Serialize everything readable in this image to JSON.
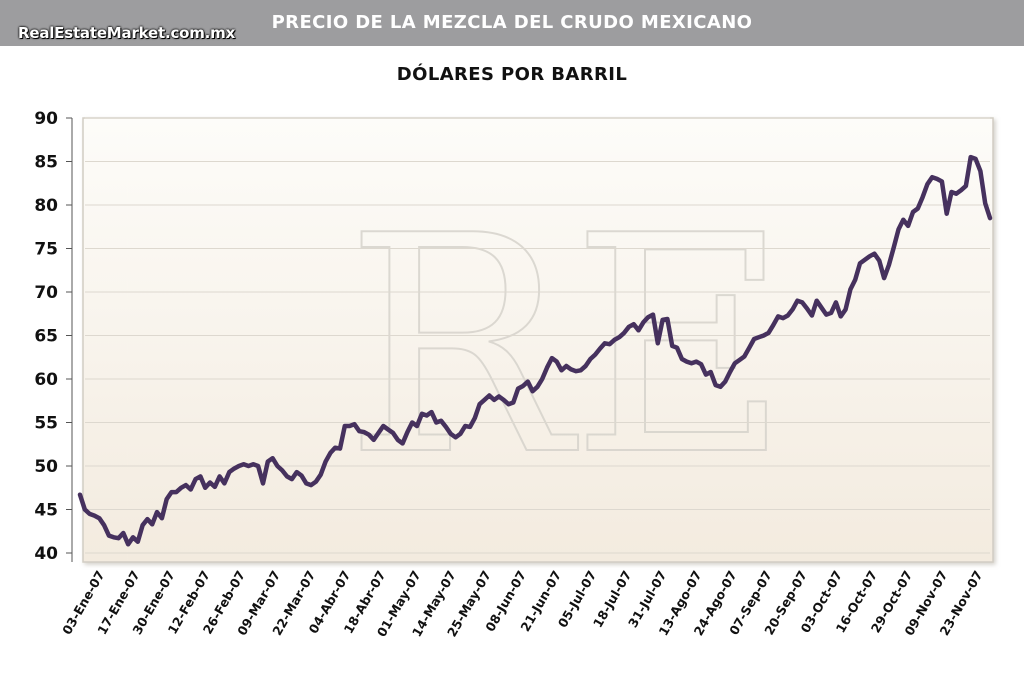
{
  "header": {
    "title": "PRECIO DE LA MEZCLA DEL CRUDO MEXICANO",
    "site": "RealEstateMarket.com.mx"
  },
  "watermark": {
    "text": "RE"
  },
  "colors": {
    "header_bg": "#9d9d9f",
    "line": "#46315e",
    "plot_bg_top": "#fdfcf9",
    "plot_bg_bottom": "#f3ebdf",
    "grid": "#ddd8cf"
  },
  "chart_data": {
    "type": "line",
    "title": "DÓLARES POR BARRIL",
    "xlabel": "",
    "ylabel": "",
    "ylim": [
      40,
      90
    ],
    "yticks": [
      40,
      45,
      50,
      55,
      60,
      65,
      70,
      75,
      80,
      85,
      90
    ],
    "grid": "horizontal",
    "x_tick_labels": [
      "03-Ene-07",
      "17-Ene-07",
      "30-Ene-07",
      "12-Feb-07",
      "26-Feb-07",
      "09-Mar-07",
      "22-Mar-07",
      "04-Abr-07",
      "18-Abr-07",
      "01-May-07",
      "14-May-07",
      "25-May-07",
      "08-Jun-07",
      "21-Jun-07",
      "05-Jul-07",
      "18-Jul-07",
      "31-Jul-07",
      "13-Ago-07",
      "24-Ago-07",
      "07-Sep-07",
      "20-Sep-07",
      "03-Oct-07",
      "16-Oct-07",
      "29-Oct-07",
      "09-Nov-07",
      "23-Nov-07"
    ],
    "series": [
      {
        "values": [
          46.7,
          45.0,
          44.5,
          44.3,
          44.0,
          43.2,
          42.0,
          41.8,
          41.7,
          42.3,
          41.0,
          41.8,
          41.3,
          43.2,
          43.9,
          43.3,
          44.7,
          44.0,
          46.2,
          47.0,
          47.0,
          47.5,
          47.8,
          47.3,
          48.5,
          48.8,
          47.5,
          48.1,
          47.6,
          48.8,
          48.0,
          49.3,
          49.7,
          50.0,
          50.2,
          50.0,
          50.2,
          50.0,
          48.0,
          50.5,
          50.9,
          50.0,
          49.5,
          48.8,
          48.5,
          49.3,
          48.9,
          48.0,
          47.8,
          48.2,
          49.0,
          50.5,
          51.5,
          52.1,
          52.0,
          54.6,
          54.6,
          54.8,
          54.0,
          53.9,
          53.6,
          53.0,
          53.8,
          54.6,
          54.2,
          53.8,
          53.0,
          52.6,
          53.9,
          55.0,
          54.6,
          56.0,
          55.8,
          56.2,
          55.0,
          55.2,
          54.5,
          53.7,
          53.3,
          53.7,
          54.6,
          54.5,
          55.5,
          57.1,
          57.6,
          58.1,
          57.6,
          58.0,
          57.6,
          57.1,
          57.3,
          58.9,
          59.2,
          59.7,
          58.6,
          59.1,
          60.0,
          61.3,
          62.4,
          62.0,
          61.0,
          61.5,
          61.1,
          60.9,
          61.0,
          61.5,
          62.3,
          62.8,
          63.5,
          64.1,
          64.0,
          64.5,
          64.8,
          65.3,
          66.0,
          66.3,
          65.6,
          66.5,
          67.1,
          67.4,
          64.1,
          66.8,
          66.9,
          63.8,
          63.6,
          62.3,
          62.0,
          61.8,
          62.0,
          61.7,
          60.5,
          60.8,
          59.3,
          59.1,
          59.7,
          60.8,
          61.8,
          62.2,
          62.6,
          63.6,
          64.6,
          64.8,
          65.0,
          65.3,
          66.2,
          67.2,
          67.0,
          67.3,
          68.0,
          69.0,
          68.8,
          68.1,
          67.3,
          69.0,
          68.2,
          67.4,
          67.6,
          68.8,
          67.2,
          68.0,
          70.3,
          71.4,
          73.3,
          73.7,
          74.1,
          74.4,
          73.6,
          71.6,
          73.1,
          75.1,
          77.2,
          78.3,
          77.6,
          79.2,
          79.6,
          80.9,
          82.4,
          83.2,
          83.0,
          82.7,
          79.0,
          81.5,
          81.3,
          81.7,
          82.2,
          85.5,
          85.3,
          83.9,
          80.2,
          78.5
        ]
      }
    ]
  }
}
